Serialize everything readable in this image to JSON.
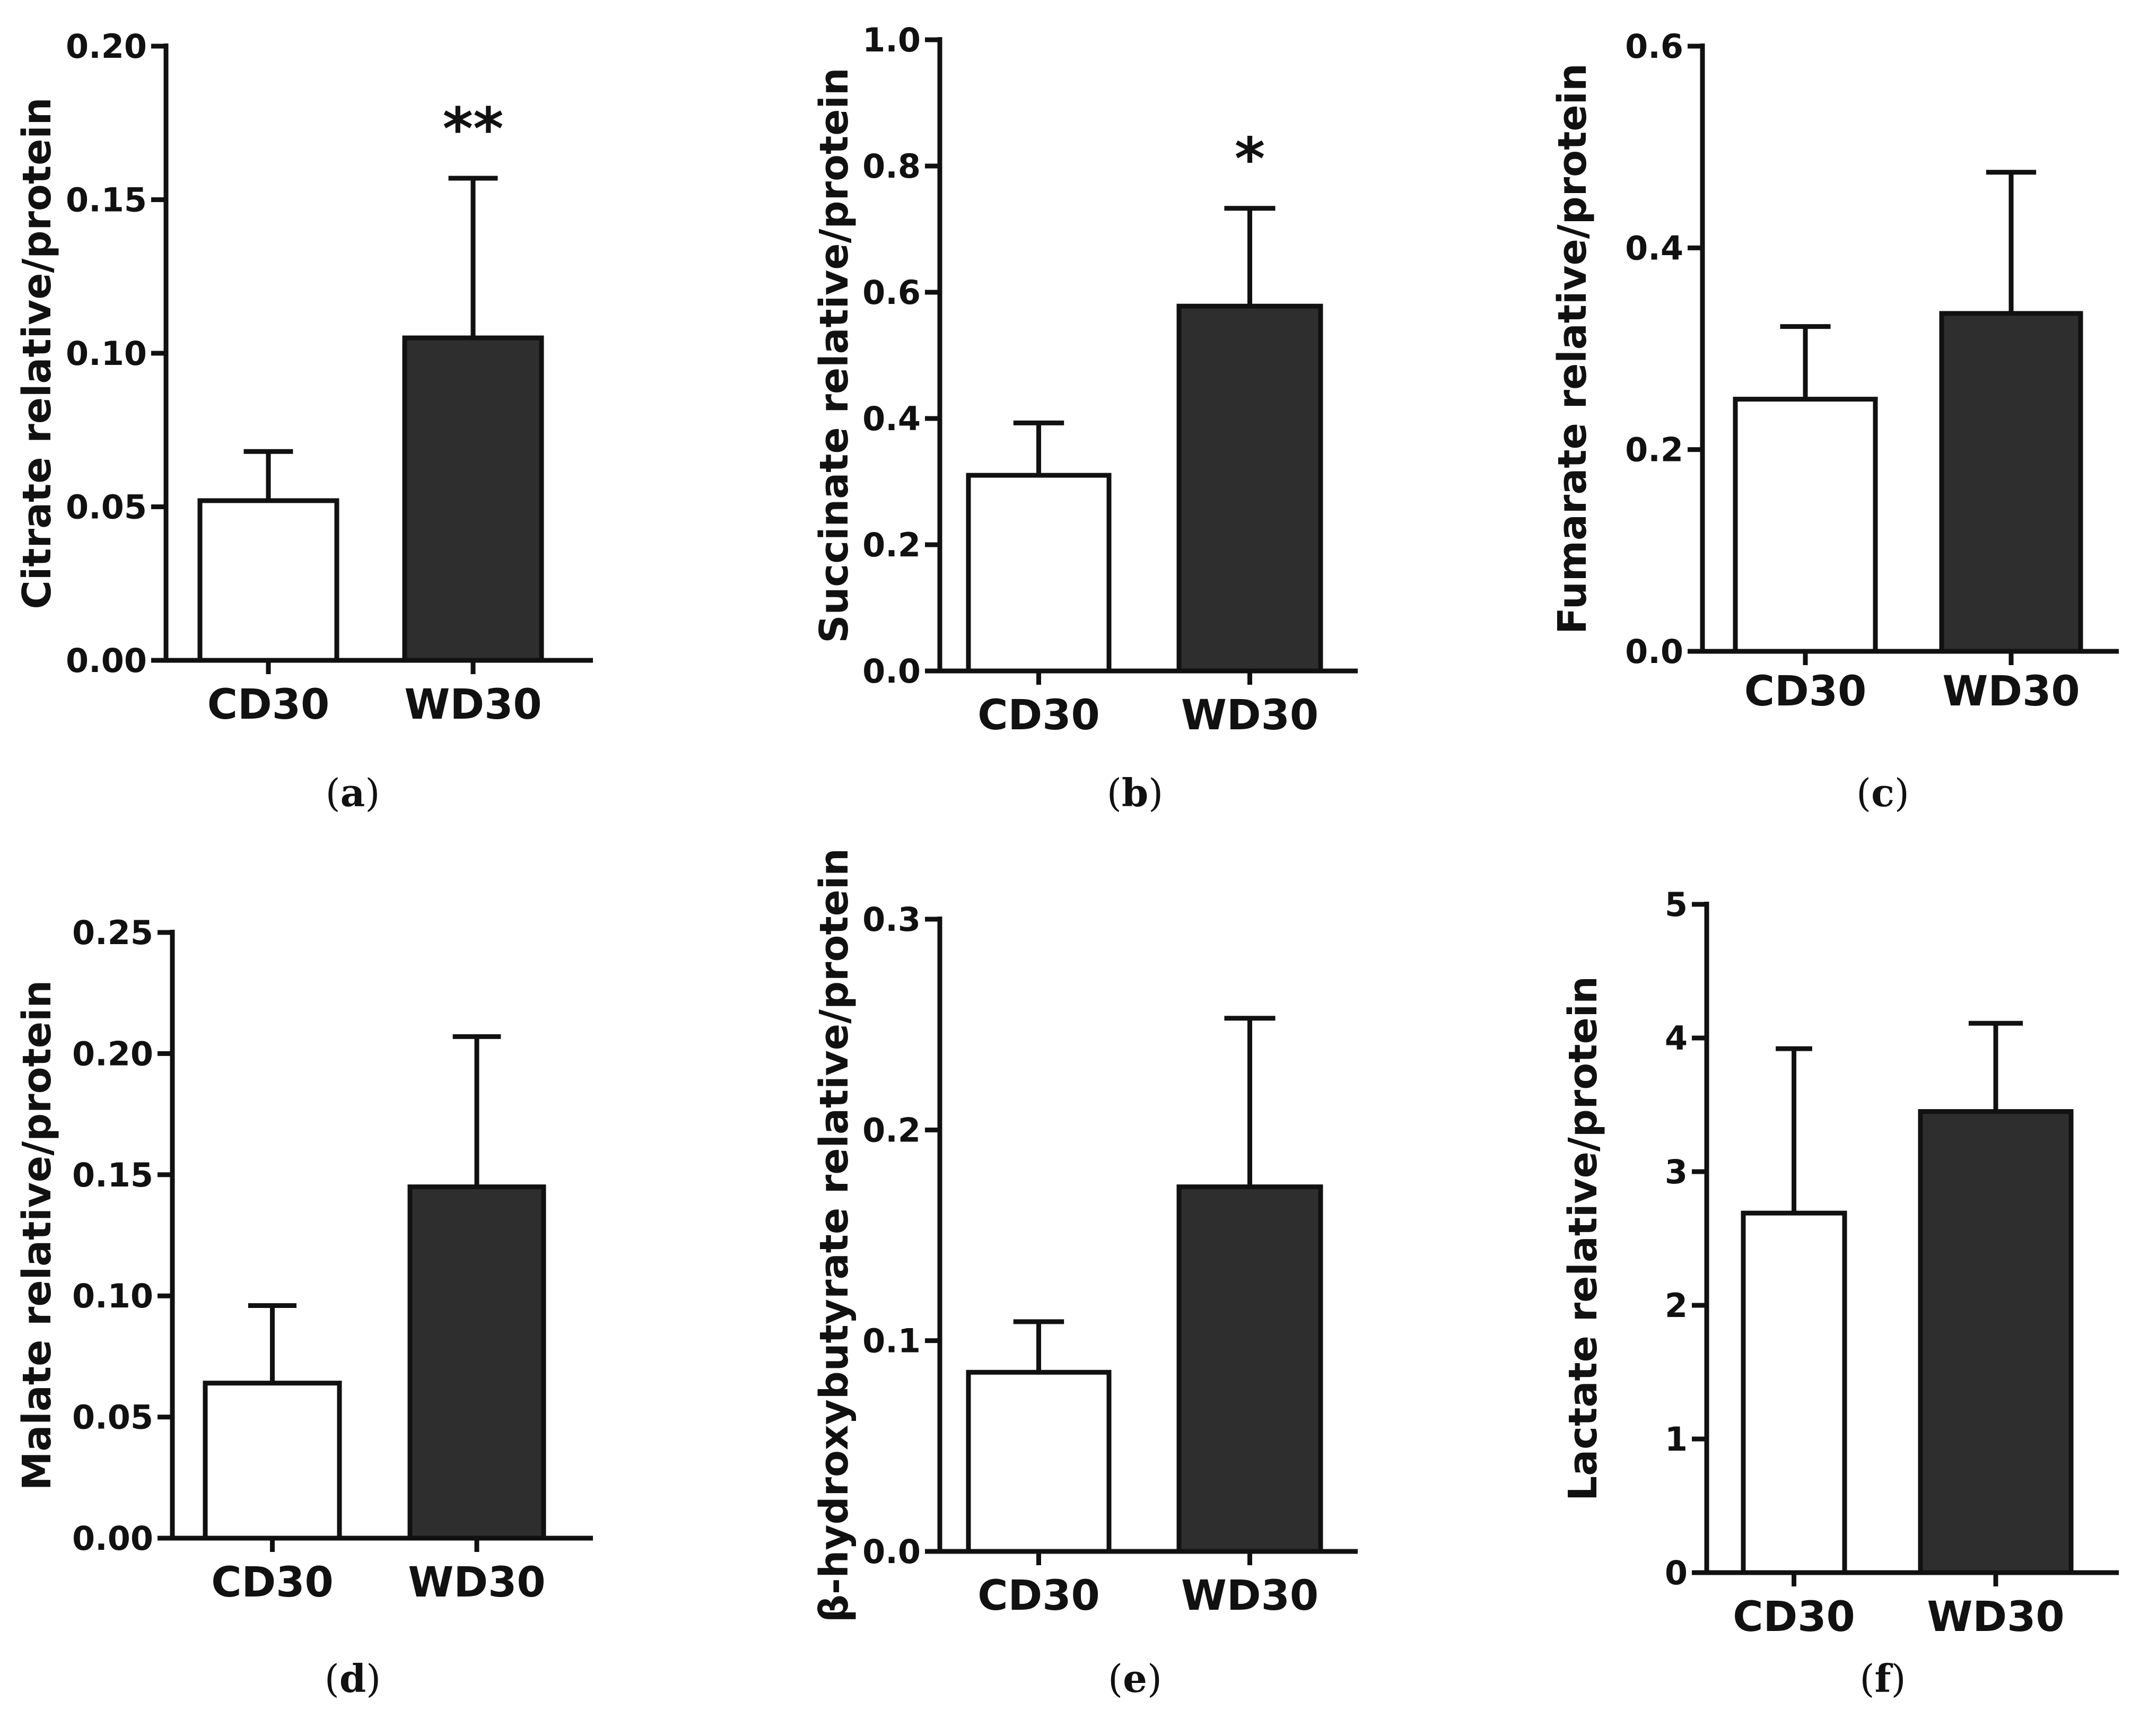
{
  "figure": {
    "description_colors": {
      "control_fill": "#ffffff",
      "western_fill": "#2e2e2e",
      "stroke": "#111111"
    }
  },
  "chart_data": [
    {
      "type": "bar",
      "panel": "(a)",
      "panel_letter": "a",
      "ylabel": "Citrate relative/protein",
      "ylim": [
        0,
        0.2
      ],
      "yticks": [
        "0.00",
        "0.05",
        "0.10",
        "0.15",
        "0.20"
      ],
      "categories": [
        "CD30",
        "WD30"
      ],
      "values": [
        0.052,
        0.105
      ],
      "errors": [
        0.016,
        0.052
      ],
      "significance": [
        "",
        "**"
      ]
    },
    {
      "type": "bar",
      "panel": "(b)",
      "panel_letter": "b",
      "ylabel": "Succinate relative/protein",
      "ylim": [
        0,
        1.0
      ],
      "yticks": [
        "0.0",
        "0.2",
        "0.4",
        "0.6",
        "0.8",
        "1.0"
      ],
      "categories": [
        "CD30",
        "WD30"
      ],
      "values": [
        0.31,
        0.578
      ],
      "errors": [
        0.083,
        0.155
      ],
      "significance": [
        "",
        "*"
      ]
    },
    {
      "type": "bar",
      "panel": "(c)",
      "panel_letter": "c",
      "ylabel": "Fumarate relative/protein",
      "ylim": [
        0,
        0.6
      ],
      "yticks": [
        "0.0",
        "0.2",
        "0.4",
        "0.6"
      ],
      "categories": [
        "CD30",
        "WD30"
      ],
      "values": [
        0.25,
        0.335
      ],
      "errors": [
        0.072,
        0.14
      ],
      "significance": [
        "",
        ""
      ]
    },
    {
      "type": "bar",
      "panel": "(d)",
      "panel_letter": "d",
      "ylabel": "Malate relative/protein",
      "ylim": [
        0,
        0.25
      ],
      "yticks": [
        "0.00",
        "0.05",
        "0.10",
        "0.15",
        "0.20",
        "0.25"
      ],
      "categories": [
        "CD30",
        "WD30"
      ],
      "values": [
        0.064,
        0.145
      ],
      "errors": [
        0.032,
        0.062
      ],
      "significance": [
        "",
        ""
      ]
    },
    {
      "type": "bar",
      "panel": "(e)",
      "panel_letter": "e",
      "ylabel": "β-hydroxybutyrate relative/protein",
      "ylim": [
        0,
        0.3
      ],
      "yticks": [
        "0.0",
        "0.1",
        "0.2",
        "0.3"
      ],
      "categories": [
        "CD30",
        "WD30"
      ],
      "values": [
        0.085,
        0.173
      ],
      "errors": [
        0.024,
        0.08
      ],
      "significance": [
        "",
        ""
      ]
    },
    {
      "type": "bar",
      "panel": "(f)",
      "panel_letter": "f",
      "ylabel": "Lactate relative/protein",
      "ylim": [
        0,
        5
      ],
      "yticks": [
        "0",
        "1",
        "2",
        "3",
        "4",
        "5"
      ],
      "categories": [
        "CD30",
        "WD30"
      ],
      "values": [
        2.69,
        3.45
      ],
      "errors": [
        1.23,
        0.66
      ],
      "significance": [
        "",
        ""
      ]
    }
  ]
}
